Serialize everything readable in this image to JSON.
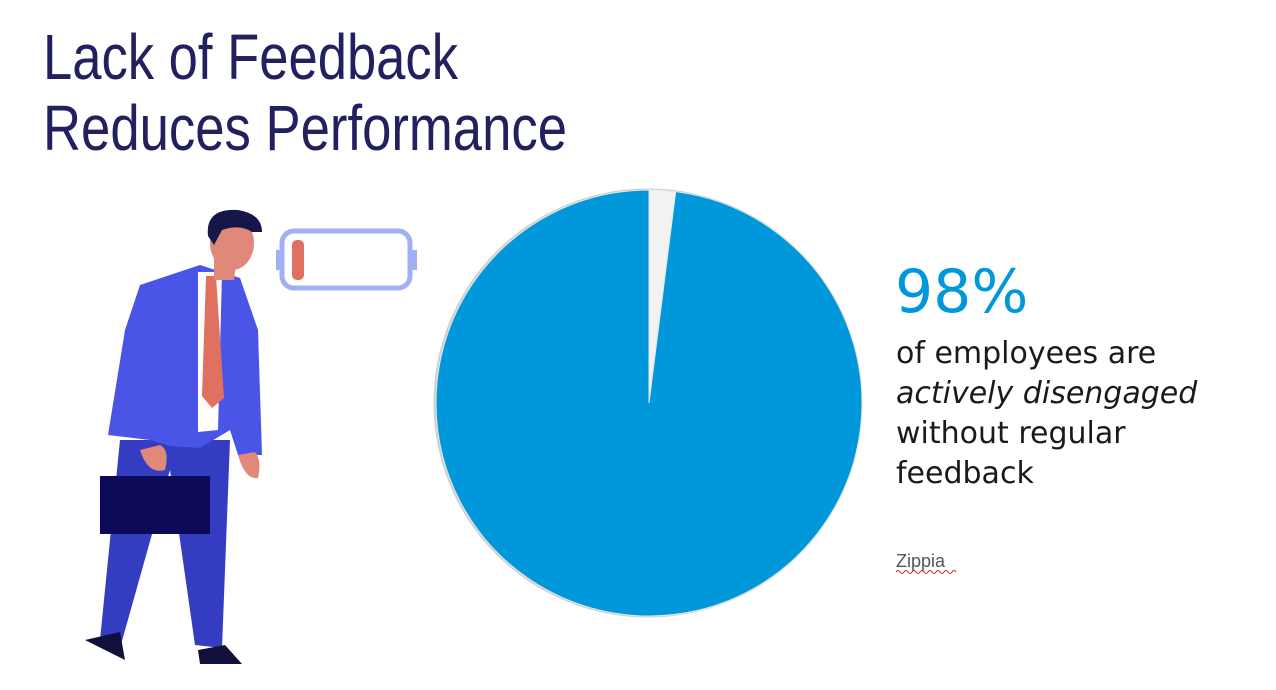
{
  "chart_data": {
    "type": "pie",
    "title": [
      "Lack of Feedback",
      "Reduces Performance"
    ],
    "values": [
      2,
      98
    ],
    "value_labels": [
      null,
      "98%"
    ],
    "colors": [
      "#f2f2f2",
      "#0098da"
    ],
    "description": [
      "of employees are",
      "actively disengaged",
      "without regular",
      "feedback"
    ],
    "source": "Zippia"
  }
}
